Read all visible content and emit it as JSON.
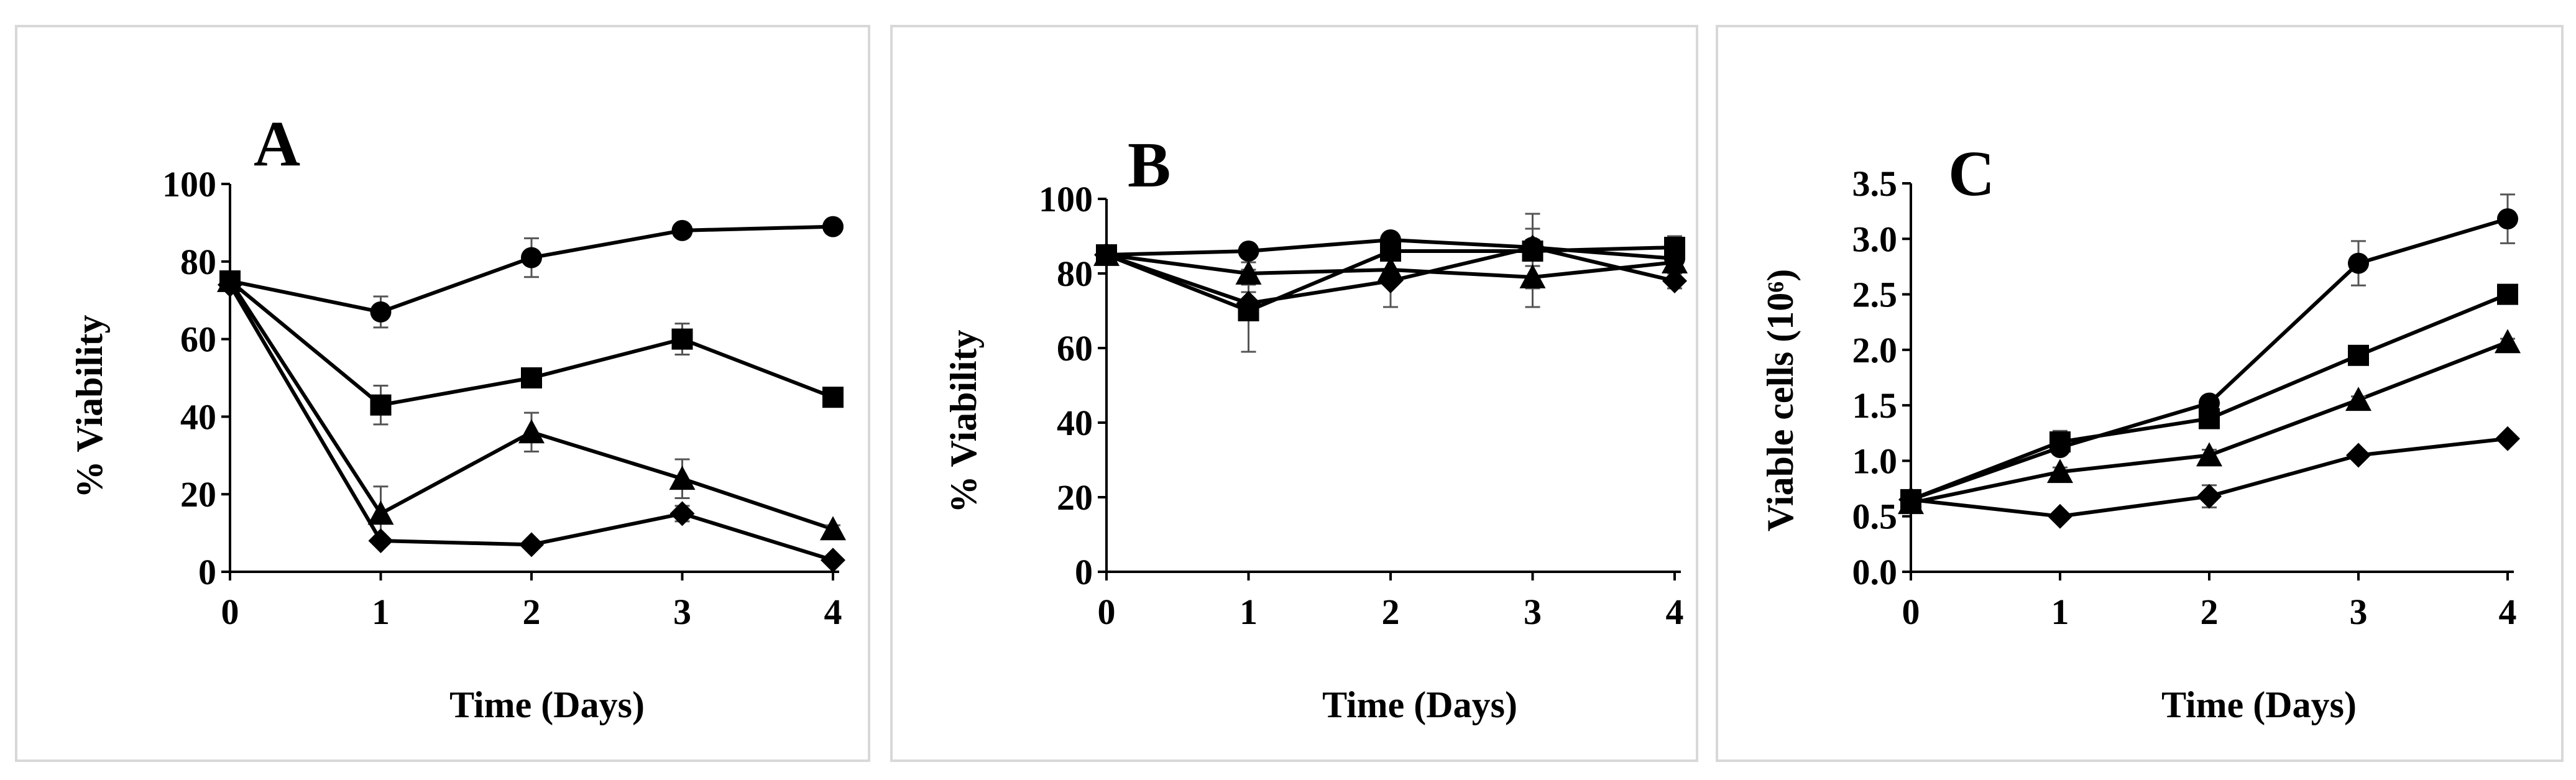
{
  "chart_data": [
    {
      "type": "line",
      "panel_label": "A",
      "title": "",
      "xlabel": "Time (Days)",
      "ylabel": "% Viability",
      "x": [
        0,
        1,
        2,
        3,
        4
      ],
      "xlim": [
        0,
        4
      ],
      "ylim": [
        0,
        100
      ],
      "xticks": [
        "0",
        "1",
        "2",
        "3",
        "4"
      ],
      "yticks": [
        "0",
        "20",
        "40",
        "60",
        "80",
        "100"
      ],
      "series": [
        {
          "name": "circle",
          "marker": "circle",
          "values": [
            75,
            67,
            81,
            88,
            89
          ],
          "errors": [
            0,
            4,
            5,
            1,
            1
          ]
        },
        {
          "name": "square",
          "marker": "square",
          "values": [
            75,
            43,
            50,
            60,
            45
          ],
          "errors": [
            0,
            5,
            2,
            4,
            1
          ]
        },
        {
          "name": "triangle",
          "marker": "triangle",
          "values": [
            75,
            15,
            36,
            24,
            11
          ],
          "errors": [
            0,
            7,
            5,
            5,
            1
          ]
        },
        {
          "name": "diamond",
          "marker": "diamond",
          "values": [
            74,
            8,
            7,
            15,
            3
          ],
          "errors": [
            0,
            1,
            1,
            2,
            1
          ]
        }
      ]
    },
    {
      "type": "line",
      "panel_label": "B",
      "title": "",
      "xlabel": "Time (Days)",
      "ylabel": "% Viability",
      "x": [
        0,
        1,
        2,
        3,
        4
      ],
      "xlim": [
        0,
        4
      ],
      "ylim": [
        0,
        100
      ],
      "xticks": [
        "0",
        "1",
        "2",
        "3",
        "4"
      ],
      "yticks": [
        "0",
        "20",
        "40",
        "60",
        "80",
        "100"
      ],
      "series": [
        {
          "name": "circle",
          "marker": "circle",
          "values": [
            85,
            86,
            89,
            87,
            84
          ],
          "errors": [
            0,
            1,
            1,
            2,
            2
          ]
        },
        {
          "name": "square",
          "marker": "square",
          "values": [
            85,
            70,
            86,
            86,
            87
          ],
          "errors": [
            0,
            11,
            2,
            10,
            3
          ]
        },
        {
          "name": "triangle",
          "marker": "triangle",
          "values": [
            85,
            80,
            81,
            79,
            83
          ],
          "errors": [
            0,
            3,
            3,
            8,
            3
          ]
        },
        {
          "name": "diamond",
          "marker": "diamond",
          "values": [
            85,
            72,
            78,
            87,
            78
          ],
          "errors": [
            0,
            3,
            7,
            5,
            2
          ]
        }
      ]
    },
    {
      "type": "line",
      "panel_label": "C",
      "title": "",
      "xlabel": "Time (Days)",
      "ylabel": "Viable cells (10⁶)",
      "x": [
        0,
        1,
        2,
        3,
        4
      ],
      "xlim": [
        0,
        4
      ],
      "ylim": [
        0,
        3.5
      ],
      "xticks": [
        "0",
        "1",
        "2",
        "3",
        "4"
      ],
      "yticks": [
        "0.0",
        "0.5",
        "1.0",
        "1.5",
        "2.0",
        "2.5",
        "3.0",
        "3.5"
      ],
      "series": [
        {
          "name": "circle",
          "marker": "circle",
          "values": [
            0.65,
            1.12,
            1.52,
            2.78,
            3.18
          ],
          "errors": [
            0,
            0.06,
            0.04,
            0.2,
            0.22
          ]
        },
        {
          "name": "square",
          "marker": "square",
          "values": [
            0.65,
            1.17,
            1.38,
            1.95,
            2.5
          ],
          "errors": [
            0,
            0.1,
            0.04,
            0.03,
            0.02
          ]
        },
        {
          "name": "triangle",
          "marker": "triangle",
          "values": [
            0.62,
            0.9,
            1.05,
            1.55,
            2.07
          ],
          "errors": [
            0,
            0.04,
            0.05,
            0.03,
            0.03
          ]
        },
        {
          "name": "diamond",
          "marker": "diamond",
          "values": [
            0.65,
            0.5,
            0.68,
            1.05,
            1.2
          ],
          "errors": [
            0,
            0.03,
            0.1,
            0.03,
            0.02
          ]
        }
      ]
    }
  ]
}
